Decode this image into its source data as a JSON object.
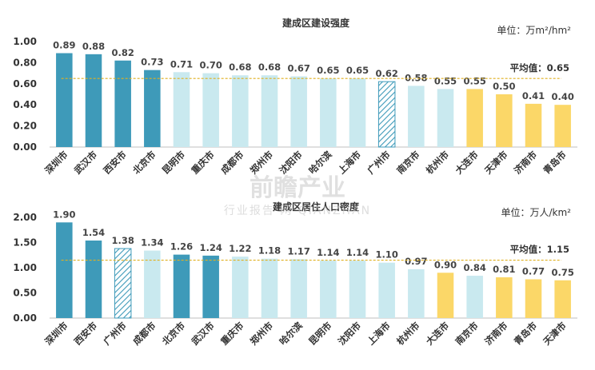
{
  "colors": {
    "dark": "#3e9ab9",
    "light": "#c9e9ef",
    "yellow": "#fbd768",
    "hatch": "#3e9ab9",
    "avgline": "#e0b020",
    "axis": "#bfbfbf"
  },
  "watermark": {
    "main": "前瞻产业",
    "sub": "行业报告 网 QIANZHAN"
  },
  "chart_data": [
    {
      "type": "bar",
      "title": "建成区建设强度",
      "unit": "单位：万m²/hm²",
      "ylim": [
        0,
        1.0
      ],
      "yticks": [
        "0.00",
        "0.20",
        "0.40",
        "0.60",
        "0.80",
        "1.00"
      ],
      "average": {
        "label": "平均值：0.65",
        "value": 0.65
      },
      "categories": [
        "深圳市",
        "武汉市",
        "西安市",
        "北京市",
        "昆明市",
        "重庆市",
        "成都市",
        "郑州市",
        "沈阳市",
        "哈尔滨",
        "上海市",
        "广州市",
        "南京市",
        "杭州市",
        "大连市",
        "天津市",
        "济南市",
        "青岛市"
      ],
      "values": [
        0.89,
        0.88,
        0.82,
        0.73,
        0.71,
        0.7,
        0.68,
        0.68,
        0.67,
        0.65,
        0.65,
        0.62,
        0.58,
        0.55,
        0.55,
        0.5,
        0.41,
        0.4
      ],
      "labels": [
        "0.89",
        "0.88",
        "0.82",
        "0.73",
        "0.71",
        "0.70",
        "0.68",
        "0.68",
        "0.67",
        "0.65",
        "0.65",
        "0.62",
        "0.58",
        "0.55",
        "0.55",
        "0.50",
        "0.41",
        "0.40"
      ],
      "styles": [
        "dark",
        "dark",
        "dark",
        "dark",
        "light",
        "light",
        "light",
        "light",
        "light",
        "light",
        "light",
        "hatch",
        "light",
        "light",
        "yellow",
        "yellow",
        "yellow",
        "yellow"
      ]
    },
    {
      "type": "bar",
      "title": "建成区居住人口密度",
      "unit": "单位：万人/km²",
      "ylim": [
        0,
        2.0
      ],
      "yticks": [
        "0.00",
        "0.50",
        "1.00",
        "1.50",
        "2.00"
      ],
      "average": {
        "label": "平均值：1.15",
        "value": 1.15
      },
      "categories": [
        "深圳市",
        "西安市",
        "广州市",
        "成都市",
        "北京市",
        "武汉市",
        "重庆市",
        "郑州市",
        "哈尔滨",
        "昆明市",
        "沈阳市",
        "上海市",
        "杭州市",
        "大连市",
        "南京市",
        "济南市",
        "青岛市",
        "天津市"
      ],
      "values": [
        1.9,
        1.54,
        1.38,
        1.34,
        1.26,
        1.24,
        1.22,
        1.18,
        1.17,
        1.14,
        1.14,
        1.1,
        0.97,
        0.9,
        0.84,
        0.81,
        0.77,
        0.75
      ],
      "labels": [
        "1.90",
        "1.54",
        "1.38",
        "1.34",
        "1.26",
        "1.24",
        "1.22",
        "1.18",
        "1.17",
        "1.14",
        "1.14",
        "1.10",
        "0.97",
        "0.90",
        "0.84",
        "0.81",
        "0.77",
        "0.75"
      ],
      "styles": [
        "dark",
        "dark",
        "hatch",
        "light",
        "dark",
        "dark",
        "light",
        "light",
        "light",
        "light",
        "light",
        "light",
        "light",
        "yellow",
        "light",
        "yellow",
        "yellow",
        "yellow"
      ]
    }
  ]
}
